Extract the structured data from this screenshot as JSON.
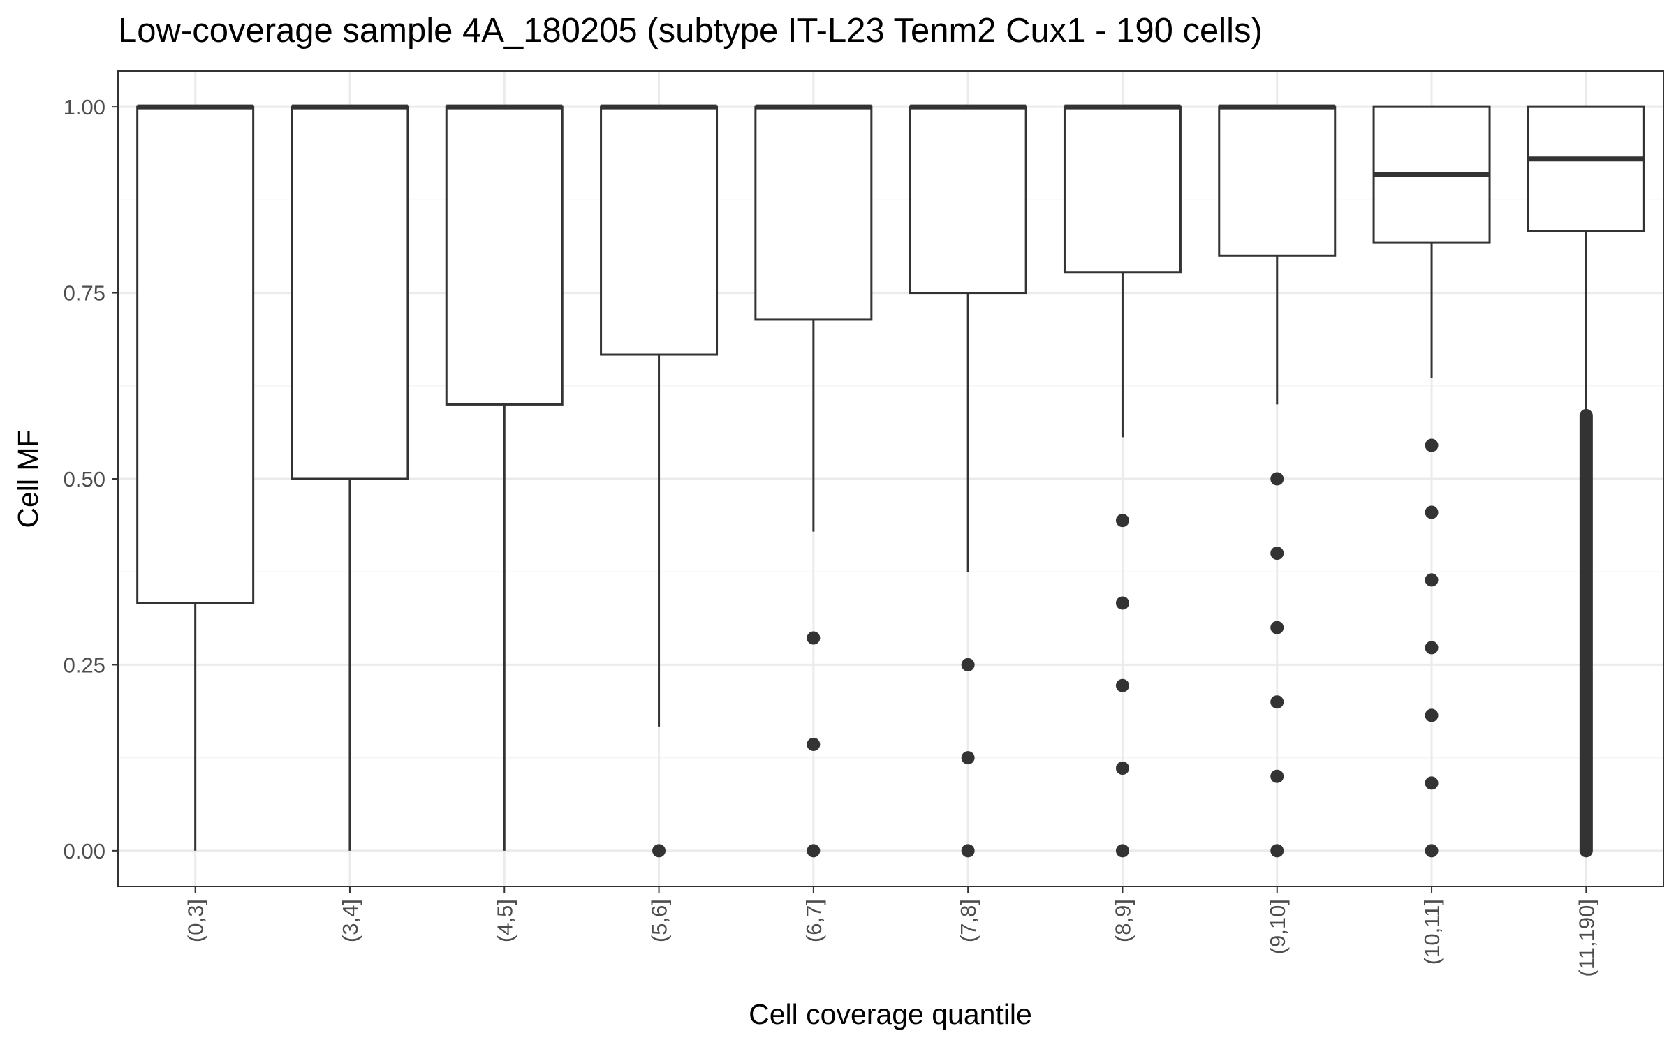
{
  "chart_data": {
    "type": "boxplot",
    "title": "Low-coverage sample 4A_180205 (subtype IT-L23 Tenm2 Cux1 - 190 cells)",
    "xlabel": "Cell coverage quantile",
    "ylabel": "Cell MF",
    "ylim": [
      -0.048,
      1.048
    ],
    "yticks": [
      "0.00",
      "0.25",
      "0.50",
      "0.75",
      "1.00"
    ],
    "grid": true,
    "categories": [
      "(0,3]",
      "(3,4]",
      "(4,5]",
      "(5,6]",
      "(6,7]",
      "(7,8]",
      "(8,9]",
      "(9,10]",
      "(10,11]",
      "(11,190]"
    ],
    "boxes": [
      {
        "q1": 0.333,
        "median": 1.0,
        "q3": 1.0,
        "whisker_low": 0.0,
        "whisker_high": 1.0,
        "outliers": []
      },
      {
        "q1": 0.5,
        "median": 1.0,
        "q3": 1.0,
        "whisker_low": 0.0,
        "whisker_high": 1.0,
        "outliers": []
      },
      {
        "q1": 0.6,
        "median": 1.0,
        "q3": 1.0,
        "whisker_low": 0.0,
        "whisker_high": 1.0,
        "outliers": []
      },
      {
        "q1": 0.667,
        "median": 1.0,
        "q3": 1.0,
        "whisker_low": 0.167,
        "whisker_high": 1.0,
        "outliers": [
          0.0
        ]
      },
      {
        "q1": 0.714,
        "median": 1.0,
        "q3": 1.0,
        "whisker_low": 0.429,
        "whisker_high": 1.0,
        "outliers": [
          0.0,
          0.143,
          0.286
        ]
      },
      {
        "q1": 0.75,
        "median": 1.0,
        "q3": 1.0,
        "whisker_low": 0.375,
        "whisker_high": 1.0,
        "outliers": [
          0.0,
          0.125,
          0.25
        ]
      },
      {
        "q1": 0.778,
        "median": 1.0,
        "q3": 1.0,
        "whisker_low": 0.556,
        "whisker_high": 1.0,
        "outliers": [
          0.0,
          0.111,
          0.222,
          0.333,
          0.444
        ]
      },
      {
        "q1": 0.8,
        "median": 1.0,
        "q3": 1.0,
        "whisker_low": 0.6,
        "whisker_high": 1.0,
        "outliers": [
          0.0,
          0.1,
          0.2,
          0.3,
          0.4,
          0.5
        ]
      },
      {
        "q1": 0.818,
        "median": 0.909,
        "q3": 1.0,
        "whisker_low": 0.636,
        "whisker_high": 1.0,
        "outliers": [
          0.0,
          0.091,
          0.182,
          0.273,
          0.364,
          0.455,
          0.545
        ]
      },
      {
        "q1": 0.833,
        "median": 0.93,
        "q3": 1.0,
        "whisker_low": 0.585,
        "whisker_high": 1.0,
        "outliers_dense_range": [
          0.0,
          0.585
        ]
      }
    ],
    "colors": {
      "box_line": "#333333",
      "point": "#333333",
      "grid_major": "#ebebeb",
      "grid_minor": "#f5f5f5",
      "panel_border": "#333333",
      "tick_text": "#4d4d4d"
    }
  }
}
